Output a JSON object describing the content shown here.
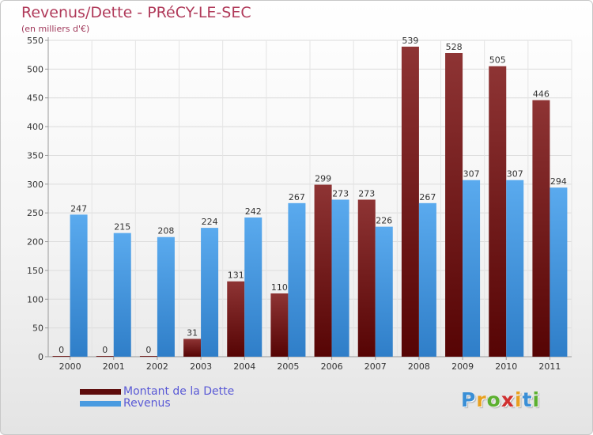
{
  "header": {
    "title": "Revenus/Dette - PRéCY-LE-SEC",
    "subtitle": "(en milliers d'€)"
  },
  "chart_data": {
    "type": "bar",
    "title": "Revenus/Dette - PRéCY-LE-SEC",
    "subtitle": "(en milliers d'€)",
    "categories": [
      "2000",
      "2001",
      "2002",
      "2003",
      "2004",
      "2005",
      "2006",
      "2007",
      "2008",
      "2009",
      "2010",
      "2011"
    ],
    "series": [
      {
        "name": "Montant de la Dette",
        "color": "#7a1a1a",
        "values": [
          0,
          0,
          0,
          31,
          131,
          110,
          299,
          273,
          539,
          528,
          505,
          446
        ]
      },
      {
        "name": "Revenus",
        "color": "#4a9be0",
        "values": [
          247,
          215,
          208,
          224,
          242,
          267,
          273,
          226,
          267,
          307,
          307,
          294
        ]
      }
    ],
    "ylim": [
      0,
      550
    ],
    "yticks": [
      0,
      50,
      100,
      150,
      200,
      250,
      300,
      350,
      400,
      450,
      500,
      550
    ],
    "grid": true,
    "data_labels": true,
    "legend_position": "bottom-left"
  },
  "legend": [
    {
      "label": "Montant de la Dette",
      "color": "#5c0a0a"
    },
    {
      "label": "Revenus",
      "color": "#4a9be0"
    }
  ],
  "logo": {
    "text": "Proxiti",
    "colors": [
      "#3a8fd6",
      "#e8a020",
      "#5cb030",
      "#d03030",
      "#e8a020",
      "#3a8fd6",
      "#5cb030"
    ]
  }
}
